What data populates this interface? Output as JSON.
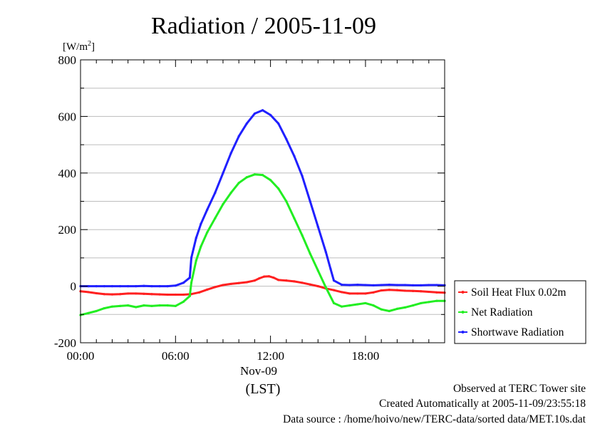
{
  "chart_data": {
    "type": "line",
    "title": "Radiation / 2005-11-09",
    "ylabel_unit": "[W/m",
    "ylabel_unit_sup": "2",
    "ylabel_unit_end": "]",
    "xlabel": "(LST)",
    "xdate": "Nov-09",
    "ylim": [
      -200,
      800
    ],
    "xlim_hours": [
      0,
      23
    ],
    "yticks": [
      -200,
      0,
      200,
      400,
      600,
      800
    ],
    "ytick_labels": [
      "-200",
      "0",
      "200",
      "400",
      "600",
      "800"
    ],
    "xticks_hours": [
      0,
      6,
      12,
      18
    ],
    "xtick_labels": [
      "00:00",
      "06:00",
      "12:00",
      "18:00"
    ],
    "grid": true,
    "legend_position": "right",
    "series": [
      {
        "name": "Soil Heat Flux 0.02m",
        "color": "#ff2020",
        "x": [
          0,
          0.5,
          1,
          1.5,
          2,
          2.5,
          3,
          3.5,
          4,
          4.5,
          5,
          5.5,
          6,
          6.5,
          7,
          7.5,
          8,
          8.5,
          9,
          9.5,
          10,
          10.5,
          11,
          11.3,
          11.6,
          11.9,
          12.2,
          12.5,
          13,
          13.5,
          14,
          14.5,
          15,
          15.5,
          16,
          16.5,
          17,
          17.5,
          18,
          18.5,
          19,
          19.5,
          20,
          20.5,
          21,
          21.5,
          22,
          22.5,
          23
        ],
        "y": [
          -18,
          -21,
          -25,
          -28,
          -29,
          -28,
          -26,
          -26,
          -27,
          -28,
          -29,
          -30,
          -30,
          -30,
          -28,
          -22,
          -12,
          -3,
          4,
          8,
          11,
          14,
          20,
          28,
          34,
          35,
          30,
          22,
          20,
          17,
          12,
          6,
          0,
          -8,
          -14,
          -21,
          -26,
          -26,
          -26,
          -22,
          -15,
          -13,
          -14,
          -16,
          -17,
          -18,
          -20,
          -22,
          -23
        ]
      },
      {
        "name": "Net Radiation",
        "color": "#22ee22",
        "x": [
          0,
          0.5,
          1,
          1.5,
          2,
          2.5,
          3,
          3.5,
          4,
          4.5,
          5,
          5.5,
          6,
          6.5,
          6.9,
          7.0,
          7.3,
          7.6,
          8,
          8.5,
          9,
          9.5,
          10,
          10.5,
          11,
          11.5,
          12,
          12.5,
          13,
          13.5,
          14,
          14.5,
          15,
          15.5,
          16,
          16.5,
          17,
          17.5,
          18,
          18.5,
          19,
          19.5,
          20,
          20.5,
          21,
          21.5,
          22,
          22.5,
          23
        ],
        "y": [
          -102,
          -95,
          -88,
          -78,
          -72,
          -70,
          -68,
          -74,
          -68,
          -70,
          -68,
          -68,
          -70,
          -55,
          -35,
          12,
          90,
          140,
          190,
          240,
          290,
          330,
          365,
          385,
          395,
          393,
          375,
          345,
          300,
          240,
          180,
          115,
          55,
          -5,
          -60,
          -72,
          -68,
          -64,
          -60,
          -68,
          -82,
          -88,
          -80,
          -75,
          -68,
          -60,
          -56,
          -52,
          -52
        ]
      },
      {
        "name": "Shortwave Radiation",
        "color": "#2020ff",
        "x": [
          0,
          0.5,
          1,
          1.5,
          2,
          2.5,
          3,
          3.5,
          4,
          4.5,
          5,
          5.5,
          6,
          6.5,
          6.9,
          7.0,
          7.3,
          7.6,
          8,
          8.5,
          9,
          9.5,
          10,
          10.5,
          11,
          11.5,
          12,
          12.5,
          13,
          13.5,
          14,
          14.5,
          15,
          15.5,
          15.8,
          16,
          16.5,
          17,
          17.5,
          18,
          18.5,
          19,
          19.5,
          20,
          20.5,
          21,
          21.5,
          22,
          22.5,
          23
        ],
        "y": [
          0,
          0,
          0,
          0,
          0,
          0,
          0,
          0,
          1,
          0,
          0,
          0,
          2,
          12,
          30,
          100,
          170,
          220,
          270,
          330,
          400,
          470,
          530,
          575,
          610,
          622,
          605,
          575,
          520,
          460,
          390,
          300,
          210,
          120,
          60,
          20,
          5,
          4,
          5,
          4,
          3,
          4,
          5,
          4,
          4,
          3,
          3,
          4,
          4,
          3
        ]
      }
    ]
  },
  "footer": {
    "line1": "Observed at TERC Tower site",
    "line2": "Created Automatically at 2005-11-09/23:55:18",
    "line3": "Data source : /home/hoivo/new/TERC-data/sorted  data/MET.10s.dat"
  }
}
